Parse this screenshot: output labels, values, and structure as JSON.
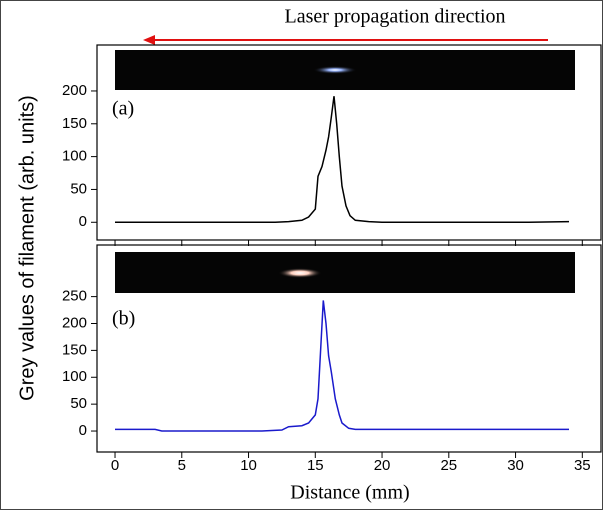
{
  "figure": {
    "title": "Laser propagation direction",
    "xlabel": "Distance (mm)",
    "ylabel": "Grey values of filament (arb. units)"
  },
  "chart_data": [
    {
      "type": "line",
      "panel_label": "(a)",
      "x": [
        0,
        2,
        4,
        6,
        8,
        10,
        12,
        13,
        14,
        14.5,
        15,
        15.2,
        15.5,
        15.8,
        16,
        16.2,
        16.4,
        16.6,
        16.8,
        17,
        17.3,
        17.6,
        18,
        19,
        20,
        22,
        25,
        28,
        31,
        34
      ],
      "series": [
        {
          "color": "#000000",
          "values": [
            0,
            0,
            0,
            0,
            0,
            0,
            0,
            1,
            3,
            8,
            20,
            70,
            85,
            110,
            130,
            160,
            192,
            150,
            100,
            55,
            25,
            10,
            3,
            1,
            0,
            0,
            0,
            0,
            0,
            1
          ]
        }
      ],
      "xlim": [
        -1.35,
        36.4
      ],
      "ylim": [
        -27,
        270
      ],
      "yticks": [
        0,
        50,
        100,
        150,
        200
      ]
    },
    {
      "type": "line",
      "panel_label": "(b)",
      "x": [
        0,
        1,
        2,
        3,
        3.5,
        5,
        8,
        11,
        12.5,
        13,
        14,
        14.5,
        15,
        15.2,
        15.4,
        15.6,
        15.8,
        16,
        16.2,
        16.5,
        16.8,
        17,
        17.5,
        18,
        20,
        25,
        30,
        34
      ],
      "series": [
        {
          "color": "#1a1acc",
          "values": [
            3,
            3,
            3,
            3,
            0,
            0,
            0,
            0,
            2,
            8,
            10,
            15,
            30,
            60,
            150,
            243,
            200,
            140,
            110,
            60,
            30,
            15,
            5,
            3,
            3,
            3,
            3,
            3
          ]
        }
      ],
      "xlim": [
        -1.35,
        36.4
      ],
      "ylim": [
        -39,
        346
      ],
      "yticks": [
        0,
        50,
        100,
        150,
        200,
        250
      ],
      "xticks": [
        0,
        5,
        10,
        15,
        20,
        25,
        30,
        35
      ]
    }
  ]
}
